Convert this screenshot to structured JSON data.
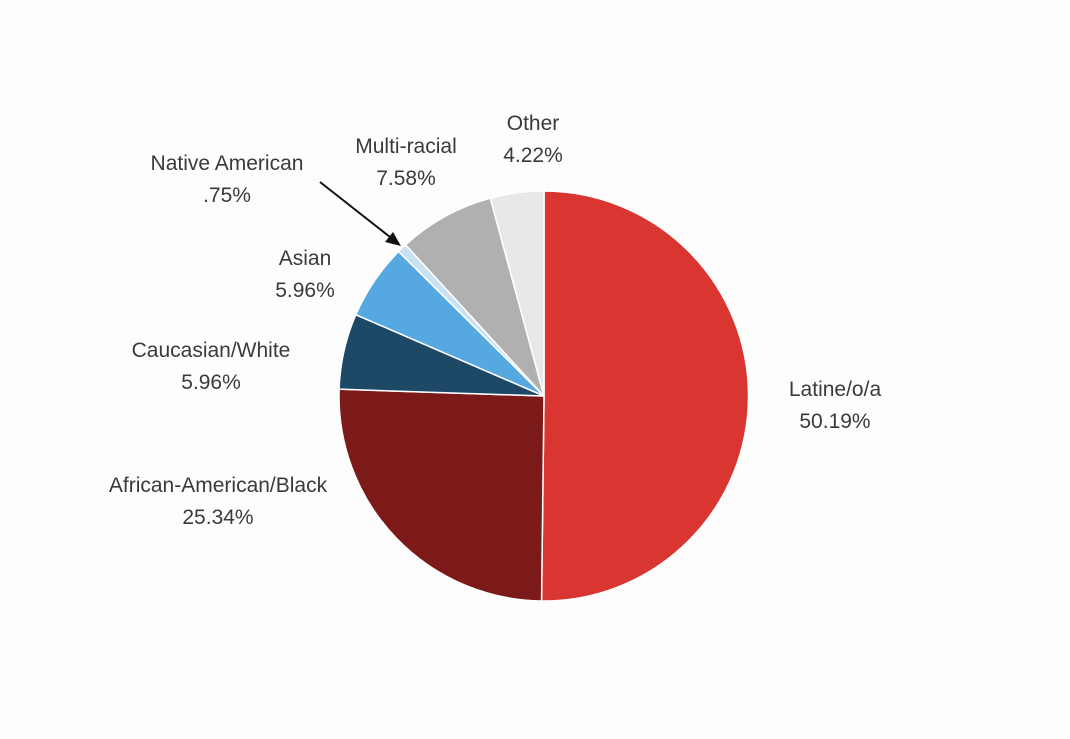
{
  "chart_data": {
    "type": "pie",
    "start_angle_deg": 0,
    "direction": "clockwise",
    "slices": [
      {
        "label": "Latine/o/a",
        "value_label": "50.19%",
        "value": 50.19,
        "color": "#d93631"
      },
      {
        "label": "African-American/Black",
        "value_label": "25.34%",
        "value": 25.34,
        "color": "#7b1a19"
      },
      {
        "label": "Caucasian/White",
        "value_label": "5.96%",
        "value": 5.96,
        "color": "#1d4866"
      },
      {
        "label": "Asian",
        "value_label": "5.96%",
        "value": 5.96,
        "color": "#55a9e0"
      },
      {
        "label": "Native American",
        "value_label": ".75%",
        "value": 0.75,
        "color": "#c9e2f2"
      },
      {
        "label": "Multi-racial",
        "value_label": "7.58%",
        "value": 7.58,
        "color": "#b0b0b0"
      },
      {
        "label": "Other",
        "value_label": "4.22%",
        "value": 4.22,
        "color": "#e8e8e8"
      }
    ],
    "legend": "none",
    "labels_outside": true
  }
}
